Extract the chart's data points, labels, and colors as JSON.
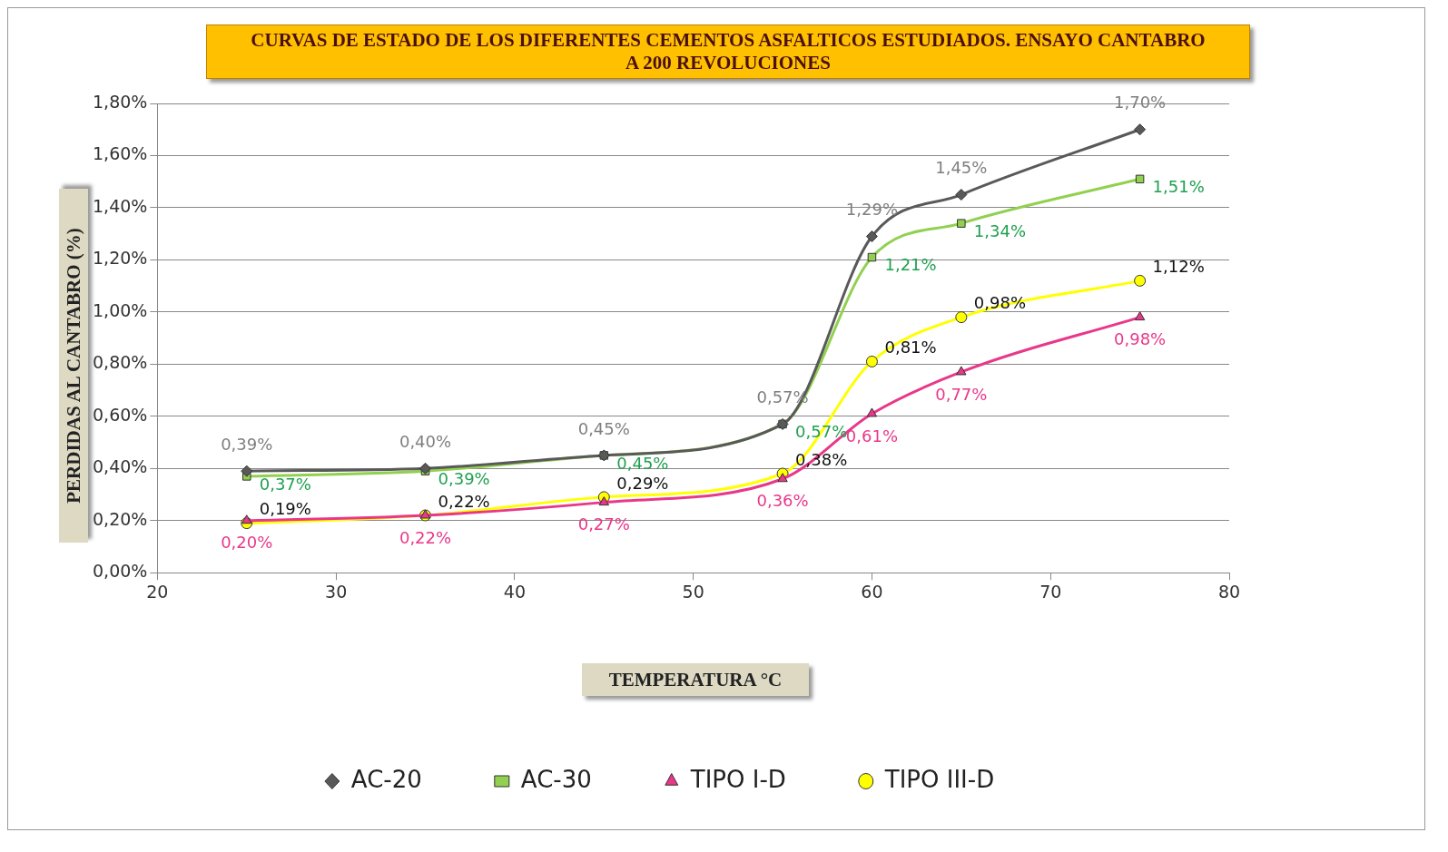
{
  "chart_data": {
    "type": "line",
    "title": "CURVAS DE ESTADO DE LOS DIFERENTES CEMENTOS ASFALTICOS ESTUDIADOS. ENSAYO CANTABRO A 200 REVOLUCIONES",
    "xlabel": "TEMPERATURA °C",
    "ylabel": "PERDIDAS AL CANTABRO (%)",
    "x": [
      25,
      35,
      45,
      55,
      60,
      65,
      75
    ],
    "series": [
      {
        "name": "AC-20",
        "color": "#595959",
        "marker": "diamond",
        "values": [
          0.39,
          0.4,
          0.45,
          0.57,
          1.29,
          1.45,
          1.7
        ],
        "value_labels": [
          "0,39%",
          "0,40%",
          "0,45%",
          "0,57%",
          "1,29%",
          "1,45%",
          "1,70%"
        ]
      },
      {
        "name": "AC-30",
        "color": "#92d050",
        "marker": "square",
        "values": [
          0.37,
          0.39,
          0.45,
          0.57,
          1.21,
          1.34,
          1.51
        ],
        "value_labels": [
          "0,37%",
          "0,39%",
          "0,45%",
          "0,57%",
          "1,21%",
          "1,34%",
          "1,51%"
        ]
      },
      {
        "name": "TIPO I-D",
        "color": "#e8388a",
        "marker": "triangle",
        "values": [
          0.2,
          0.22,
          0.27,
          0.36,
          0.61,
          0.77,
          0.98
        ],
        "value_labels": [
          "0,20%",
          "0,22%",
          "0,27%",
          "0,36%",
          "0,61%",
          "0,77%",
          "0,98%"
        ]
      },
      {
        "name": "TIPO III-D",
        "color": "#ffff00",
        "marker": "circle",
        "values": [
          0.19,
          0.22,
          0.29,
          0.38,
          0.81,
          0.98,
          1.12
        ],
        "value_labels": [
          "0,19%",
          "0,22%",
          "0,29%",
          "0,38%",
          "0,81%",
          "0,98%",
          "1,12%"
        ]
      }
    ],
    "xlim": [
      20,
      80
    ],
    "xticks": [
      20,
      30,
      40,
      50,
      60,
      70,
      80
    ],
    "ylim": [
      0,
      1.8
    ],
    "yticks": [
      {
        "value": 0,
        "label": "0,00%"
      },
      {
        "value": 0.2,
        "label": "0,20%"
      },
      {
        "value": 0.4,
        "label": "0,40%"
      },
      {
        "value": 0.6,
        "label": "0,60%"
      },
      {
        "value": 0.8,
        "label": "0,80%"
      },
      {
        "value": 1.0,
        "label": "1,00%"
      },
      {
        "value": 1.2,
        "label": "1,20%"
      },
      {
        "value": 1.4,
        "label": "1,40%"
      },
      {
        "value": 1.6,
        "label": "1,60%"
      },
      {
        "value": 1.8,
        "label": "1,80%"
      }
    ],
    "grid": "y",
    "legend": "bottom"
  }
}
